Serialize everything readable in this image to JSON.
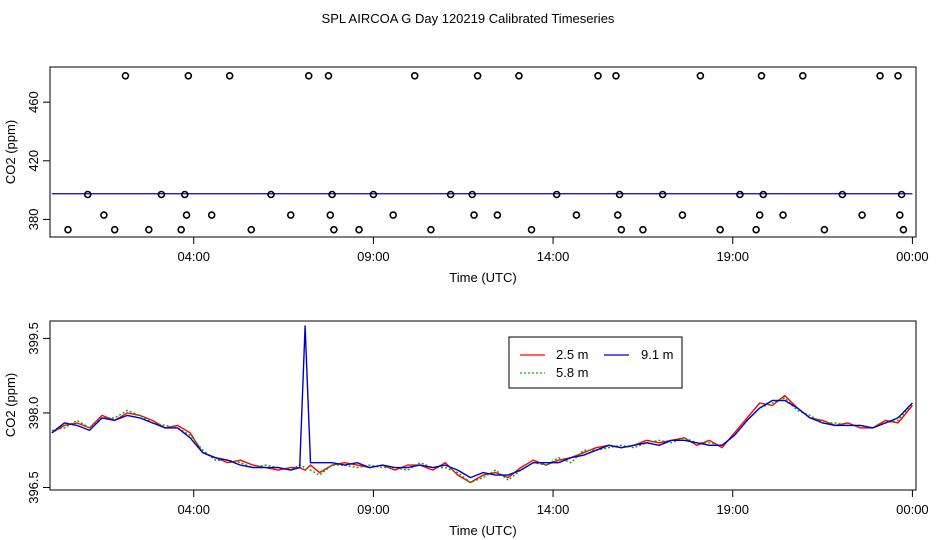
{
  "title": "SPL AIRCOA G  Day 120219  Calibrated Timeseries",
  "chart_data": [
    {
      "type": "scatter",
      "xlabel": "Time (UTC)",
      "ylabel": "CO2 (ppm)",
      "xlim": [
        0,
        24.1
      ],
      "ylim": [
        368,
        484
      ],
      "xticks": [
        {
          "value": 4,
          "label": "04:00"
        },
        {
          "value": 9,
          "label": "09:00"
        },
        {
          "value": 14,
          "label": "14:00"
        },
        {
          "value": 19,
          "label": "19:00"
        },
        {
          "value": 24,
          "label": "00:00"
        }
      ],
      "yticks": [
        {
          "value": 380,
          "label": "380"
        },
        {
          "value": 420,
          "label": "420"
        },
        {
          "value": 460,
          "label": "460"
        }
      ],
      "grid": false,
      "line_color": "#0000cc",
      "line_value": 397.5,
      "line_x": [
        0.05,
        24.0
      ],
      "points": [
        [
          0.5,
          373
        ],
        [
          1.05,
          397
        ],
        [
          1.5,
          383
        ],
        [
          1.8,
          373
        ],
        [
          2.1,
          478
        ],
        [
          2.75,
          373
        ],
        [
          3.1,
          397
        ],
        [
          3.65,
          373
        ],
        [
          3.75,
          397
        ],
        [
          3.8,
          383
        ],
        [
          3.85,
          478
        ],
        [
          4.5,
          383
        ],
        [
          5.0,
          478
        ],
        [
          5.6,
          373
        ],
        [
          6.15,
          397
        ],
        [
          6.7,
          383
        ],
        [
          7.2,
          478
        ],
        [
          7.75,
          478
        ],
        [
          7.8,
          383
        ],
        [
          7.85,
          397
        ],
        [
          7.9,
          373
        ],
        [
          8.6,
          373
        ],
        [
          9.0,
          397
        ],
        [
          9.55,
          383
        ],
        [
          10.15,
          478
        ],
        [
          10.6,
          373
        ],
        [
          11.15,
          397
        ],
        [
          11.75,
          397
        ],
        [
          11.8,
          383
        ],
        [
          11.9,
          478
        ],
        [
          12.45,
          383
        ],
        [
          13.05,
          478
        ],
        [
          13.4,
          373
        ],
        [
          14.1,
          397
        ],
        [
          14.65,
          383
        ],
        [
          15.25,
          478
        ],
        [
          15.75,
          478
        ],
        [
          15.8,
          383
        ],
        [
          15.85,
          397
        ],
        [
          15.9,
          373
        ],
        [
          16.5,
          373
        ],
        [
          17.05,
          397
        ],
        [
          17.6,
          383
        ],
        [
          18.1,
          478
        ],
        [
          18.65,
          373
        ],
        [
          19.2,
          397
        ],
        [
          19.65,
          373
        ],
        [
          19.75,
          383
        ],
        [
          19.8,
          478
        ],
        [
          19.85,
          397
        ],
        [
          20.4,
          383
        ],
        [
          20.95,
          478
        ],
        [
          21.55,
          373
        ],
        [
          22.05,
          397
        ],
        [
          22.6,
          383
        ],
        [
          23.1,
          478
        ],
        [
          23.6,
          478
        ],
        [
          23.65,
          383
        ],
        [
          23.7,
          397
        ],
        [
          23.75,
          373
        ]
      ]
    },
    {
      "type": "line",
      "xlabel": "Time (UTC)",
      "ylabel": "CO2 (ppm)",
      "xlim": [
        0,
        24.1
      ],
      "ylim": [
        396.45,
        399.85
      ],
      "xticks": [
        {
          "value": 4,
          "label": "04:00"
        },
        {
          "value": 9,
          "label": "09:00"
        },
        {
          "value": 14,
          "label": "14:00"
        },
        {
          "value": 19,
          "label": "19:00"
        },
        {
          "value": 24,
          "label": "00:00"
        }
      ],
      "yticks": [
        {
          "value": 396.5,
          "label": "396.5"
        },
        {
          "value": 398.0,
          "label": "398.0"
        },
        {
          "value": 399.5,
          "label": "399.5"
        }
      ],
      "grid": false,
      "legend_position": "top-center",
      "x": [
        0.05,
        0.4,
        0.75,
        1.1,
        1.45,
        1.8,
        2.15,
        2.5,
        2.85,
        3.2,
        3.55,
        3.9,
        4.25,
        4.6,
        4.95,
        5.3,
        5.65,
        6.0,
        6.35,
        6.7,
        6.95,
        7.1,
        7.25,
        7.5,
        7.85,
        8.2,
        8.55,
        8.9,
        9.25,
        9.6,
        9.95,
        10.3,
        10.65,
        11.0,
        11.35,
        11.7,
        12.05,
        12.4,
        12.75,
        13.1,
        13.45,
        13.8,
        14.15,
        14.5,
        14.85,
        15.2,
        15.55,
        15.9,
        16.25,
        16.6,
        16.95,
        17.3,
        17.65,
        18.0,
        18.35,
        18.7,
        19.05,
        19.4,
        19.75,
        20.1,
        20.45,
        20.8,
        21.15,
        21.5,
        21.85,
        22.2,
        22.55,
        22.9,
        23.25,
        23.6,
        24.0
      ],
      "series": [
        {
          "name": "2.5 m",
          "color": "#ff0000",
          "dash": "",
          "values": [
            397.6,
            397.75,
            397.8,
            397.7,
            397.95,
            397.85,
            398.0,
            397.95,
            397.85,
            397.7,
            397.75,
            397.6,
            397.2,
            397.1,
            397.0,
            397.05,
            396.95,
            396.9,
            396.85,
            396.9,
            396.9,
            396.85,
            396.95,
            396.8,
            396.95,
            397.0,
            396.95,
            396.9,
            396.95,
            396.85,
            396.95,
            396.95,
            396.85,
            397.0,
            396.75,
            396.6,
            396.75,
            396.8,
            396.7,
            396.9,
            397.05,
            396.95,
            397.05,
            397.1,
            397.2,
            397.3,
            397.35,
            397.3,
            397.35,
            397.45,
            397.4,
            397.45,
            397.5,
            397.35,
            397.45,
            397.3,
            397.6,
            397.9,
            398.2,
            398.15,
            398.35,
            398.1,
            397.9,
            397.85,
            397.75,
            397.8,
            397.7,
            397.7,
            397.85,
            397.8,
            398.15
          ]
        },
        {
          "name": "5.8 m",
          "color": "#00aa00",
          "dash": "2,2",
          "values": [
            397.65,
            397.7,
            397.85,
            397.7,
            397.9,
            397.9,
            398.05,
            397.95,
            397.8,
            397.75,
            397.7,
            397.55,
            397.25,
            397.05,
            397.05,
            397.0,
            396.9,
            396.95,
            396.9,
            396.85,
            396.95,
            396.9,
            396.85,
            396.75,
            396.95,
            396.95,
            396.9,
            396.95,
            396.9,
            396.9,
            396.85,
            397.0,
            396.9,
            396.9,
            396.8,
            396.6,
            396.7,
            396.85,
            396.65,
            396.85,
            397.0,
            396.95,
            397.1,
            397.0,
            397.25,
            397.25,
            397.3,
            397.35,
            397.3,
            397.4,
            397.45,
            397.4,
            397.5,
            397.4,
            397.4,
            397.35,
            397.55,
            397.85,
            398.1,
            398.2,
            398.3,
            398.05,
            397.95,
            397.8,
            397.8,
            397.75,
            397.75,
            397.7,
            397.8,
            397.85,
            398.2
          ]
        },
        {
          "name": "9.1 m",
          "color": "#0000cc",
          "dash": "",
          "values": [
            397.6,
            397.8,
            397.75,
            397.65,
            397.9,
            397.85,
            397.95,
            397.9,
            397.8,
            397.7,
            397.7,
            397.5,
            397.2,
            397.1,
            397.05,
            396.95,
            396.9,
            396.9,
            396.9,
            396.85,
            396.9,
            399.75,
            397.0,
            397.0,
            397.0,
            396.95,
            397.0,
            396.9,
            396.95,
            396.9,
            396.9,
            396.95,
            396.9,
            396.95,
            396.85,
            396.7,
            396.8,
            396.75,
            396.75,
            396.85,
            397.0,
            397.0,
            397.0,
            397.1,
            397.15,
            397.25,
            397.35,
            397.3,
            397.35,
            397.4,
            397.35,
            397.45,
            397.45,
            397.4,
            397.35,
            397.35,
            397.55,
            397.85,
            398.1,
            398.25,
            398.25,
            398.1,
            397.9,
            397.8,
            397.75,
            397.75,
            397.75,
            397.7,
            397.8,
            397.9,
            398.2
          ]
        }
      ]
    }
  ]
}
